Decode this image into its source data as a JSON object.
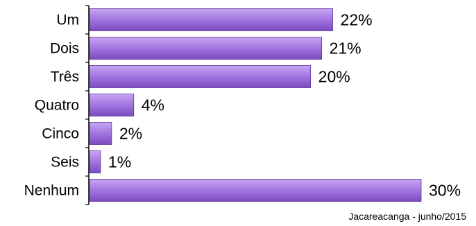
{
  "chart_data": {
    "type": "bar",
    "orientation": "horizontal",
    "categories": [
      "Um",
      "Dois",
      "Três",
      "Quatro",
      "Cinco",
      "Seis",
      "Nenhum"
    ],
    "values": [
      22,
      21,
      20,
      4,
      2,
      1,
      30
    ],
    "value_labels": [
      "22%",
      "21%",
      "20%",
      "4%",
      "2%",
      "1%",
      "30%"
    ],
    "unit": "%",
    "xlim": [
      0,
      30
    ],
    "grid": false,
    "bar_color": "#9a6ad8"
  },
  "source_note": "Jacareacanga -  junho/2015"
}
